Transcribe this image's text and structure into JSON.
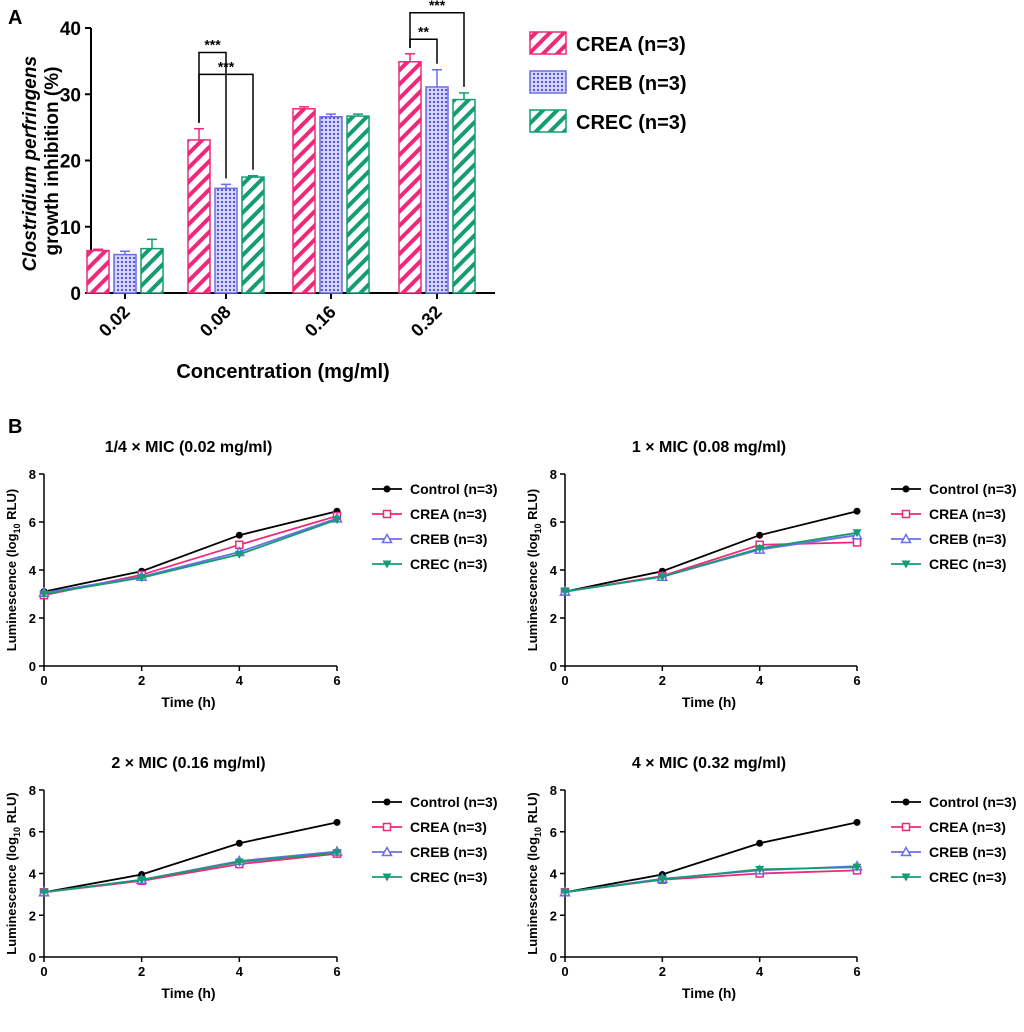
{
  "colors": {
    "crea": "#f0287a",
    "creb": "#6d6de8",
    "crec": "#149c72",
    "control": "#000000"
  },
  "panel_a": {
    "label": "A",
    "ylabel_italic": "Clostridium perfringens",
    "ylabel_line2": "growth inhibition (%)",
    "xlabel": "Concentration (mg/ml)",
    "chart_data": {
      "type": "bar",
      "title": "",
      "xlabel": "Concentration (mg/ml)",
      "ylabel": "Clostridium perfringens growth inhibition (%)",
      "ylim": [
        0,
        40
      ],
      "yticks": [
        0,
        10,
        20,
        30,
        40
      ],
      "categories": [
        "0.02",
        "0.08",
        "0.16",
        "0.32"
      ],
      "series": [
        {
          "name": "CREA (n=3)",
          "values": [
            6.4,
            23.1,
            27.8,
            34.9
          ],
          "errors": [
            0.2,
            1.7,
            0.3,
            1.2
          ]
        },
        {
          "name": "CREB (n=3)",
          "values": [
            5.8,
            15.8,
            26.6,
            31.1
          ],
          "errors": [
            0.5,
            0.6,
            0.4,
            2.6
          ]
        },
        {
          "name": "CREC (n=3)",
          "values": [
            6.7,
            17.5,
            26.7,
            29.2
          ],
          "errors": [
            1.4,
            0.2,
            0.3,
            1.0
          ]
        }
      ],
      "significance": [
        {
          "category": "0.08",
          "from": "CREA (n=3)",
          "to": "CREB (n=3)",
          "label": "***",
          "level": 36.3
        },
        {
          "category": "0.08",
          "from": "CREA (n=3)",
          "to": "CREC (n=3)",
          "label": "***",
          "level": 33.0
        },
        {
          "category": "0.32",
          "from": "CREA (n=3)",
          "to": "CREB (n=3)",
          "label": "**",
          "level": 38.3
        },
        {
          "category": "0.32",
          "from": "CREA (n=3)",
          "to": "CREC (n=3)",
          "label": "***",
          "level": 42.3
        }
      ]
    }
  },
  "panel_b": {
    "label": "B",
    "ylabel_prefix": "Luminescence (log",
    "ylabel_sub": "10",
    "ylabel_suffix": " RLU)",
    "xlabel": "Time (h)",
    "chart_data": [
      {
        "type": "line",
        "title": "1/4 × MIC (0.02 mg/ml)",
        "xlabel": "Time (h)",
        "ylabel": "Luminescence (log10 RLU)",
        "xlim": [
          0,
          6
        ],
        "ylim": [
          0,
          8
        ],
        "xticks": [
          0,
          2,
          4,
          6
        ],
        "yticks": [
          0,
          2,
          4,
          6,
          8
        ],
        "x": [
          0,
          2,
          4,
          6
        ],
        "series": [
          {
            "name": "Control (n=3)",
            "values": [
              3.1,
              3.95,
              5.45,
              6.45
            ]
          },
          {
            "name": "CREA (n=3)",
            "values": [
              2.95,
              3.8,
              5.05,
              6.25
            ]
          },
          {
            "name": "CREB (n=3)",
            "values": [
              3.05,
              3.72,
              4.75,
              6.15
            ]
          },
          {
            "name": "CREC (n=3)",
            "values": [
              3.0,
              3.68,
              4.65,
              6.1
            ]
          }
        ]
      },
      {
        "type": "line",
        "title": "1 × MIC (0.08 mg/ml)",
        "xlabel": "Time (h)",
        "ylabel": "Luminescence (log10 RLU)",
        "xlim": [
          0,
          6
        ],
        "ylim": [
          0,
          8
        ],
        "xticks": [
          0,
          2,
          4,
          6
        ],
        "yticks": [
          0,
          2,
          4,
          6,
          8
        ],
        "x": [
          0,
          2,
          4,
          6
        ],
        "series": [
          {
            "name": "Control (n=3)",
            "values": [
              3.1,
              3.95,
              5.45,
              6.45
            ]
          },
          {
            "name": "CREA (n=3)",
            "values": [
              3.1,
              3.75,
              5.05,
              5.15
            ]
          },
          {
            "name": "CREB (n=3)",
            "values": [
              3.1,
              3.72,
              4.85,
              5.45
            ]
          },
          {
            "name": "CREC (n=3)",
            "values": [
              3.1,
              3.72,
              4.9,
              5.55
            ]
          }
        ]
      },
      {
        "type": "line",
        "title": "2 × MIC (0.16 mg/ml)",
        "xlabel": "Time (h)",
        "ylabel": "Luminescence (log10 RLU)",
        "xlim": [
          0,
          6
        ],
        "ylim": [
          0,
          8
        ],
        "xticks": [
          0,
          2,
          4,
          6
        ],
        "yticks": [
          0,
          2,
          4,
          6,
          8
        ],
        "x": [
          0,
          2,
          4,
          6
        ],
        "series": [
          {
            "name": "Control (n=3)",
            "values": [
              3.1,
              3.95,
              5.45,
              6.45
            ]
          },
          {
            "name": "CREA (n=3)",
            "values": [
              3.1,
              3.65,
              4.45,
              4.95
            ]
          },
          {
            "name": "CREB (n=3)",
            "values": [
              3.1,
              3.7,
              4.6,
              5.05
            ]
          },
          {
            "name": "CREC (n=3)",
            "values": [
              3.1,
              3.7,
              4.55,
              5.0
            ]
          }
        ]
      },
      {
        "type": "line",
        "title": "4 × MIC (0.32 mg/ml)",
        "xlabel": "Time (h)",
        "ylabel": "Luminescence (log10 RLU)",
        "xlim": [
          0,
          6
        ],
        "ylim": [
          0,
          8
        ],
        "xticks": [
          0,
          2,
          4,
          6
        ],
        "yticks": [
          0,
          2,
          4,
          6,
          8
        ],
        "x": [
          0,
          2,
          4,
          6
        ],
        "series": [
          {
            "name": "Control (n=3)",
            "values": [
              3.1,
              3.95,
              5.45,
              6.45
            ]
          },
          {
            "name": "CREA (n=3)",
            "values": [
              3.1,
              3.7,
              4.0,
              4.15
            ]
          },
          {
            "name": "CREB (n=3)",
            "values": [
              3.1,
              3.75,
              4.15,
              4.35
            ]
          },
          {
            "name": "CREC (n=3)",
            "values": [
              3.1,
              3.72,
              4.2,
              4.3
            ]
          }
        ]
      }
    ]
  }
}
